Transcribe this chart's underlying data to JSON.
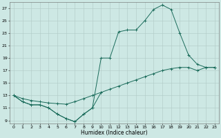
{
  "xlabel": "Humidex (Indice chaleur)",
  "background_color": "#cde8e4",
  "grid_color": "#b0c8c4",
  "line_color": "#1a6b5a",
  "xlim": [
    -0.5,
    23.5
  ],
  "ylim": [
    8.5,
    28.0
  ],
  "xticks": [
    0,
    1,
    2,
    3,
    4,
    5,
    6,
    7,
    8,
    9,
    10,
    11,
    12,
    13,
    14,
    15,
    16,
    17,
    18,
    19,
    20,
    21,
    22,
    23
  ],
  "yticks": [
    9,
    11,
    13,
    15,
    17,
    19,
    21,
    23,
    25,
    27
  ],
  "line1_x": [
    0,
    1,
    2,
    3,
    4,
    5,
    6,
    7,
    8,
    9,
    10
  ],
  "line1_y": [
    13,
    12,
    11.5,
    11.5,
    11,
    10,
    9.3,
    8.8,
    10,
    11,
    13.5
  ],
  "line2_x": [
    0,
    1,
    2,
    3,
    4,
    5,
    6,
    7,
    8,
    9,
    10,
    11,
    12,
    13,
    14,
    15,
    16,
    17,
    18,
    19,
    20,
    21,
    22,
    23
  ],
  "line2_y": [
    13,
    12,
    11.5,
    11.5,
    11,
    10,
    9.3,
    8.8,
    10,
    11,
    19,
    19,
    23.2,
    23.5,
    23.5,
    25,
    26.8,
    27.5,
    26.8,
    23,
    19.5,
    18,
    17.5,
    17.5
  ],
  "line3_x": [
    0,
    1,
    2,
    3,
    4,
    5,
    6,
    7,
    8,
    9,
    10,
    11,
    12,
    13,
    14,
    15,
    16,
    17,
    18,
    19,
    20,
    21,
    22,
    23
  ],
  "line3_y": [
    13,
    12.5,
    12.2,
    12.0,
    11.8,
    11.7,
    11.6,
    12.0,
    12.5,
    13.0,
    13.5,
    14.0,
    14.5,
    15.0,
    15.5,
    16.0,
    16.5,
    17.0,
    17.3,
    17.5,
    17.5,
    17.0,
    17.5,
    17.5
  ]
}
